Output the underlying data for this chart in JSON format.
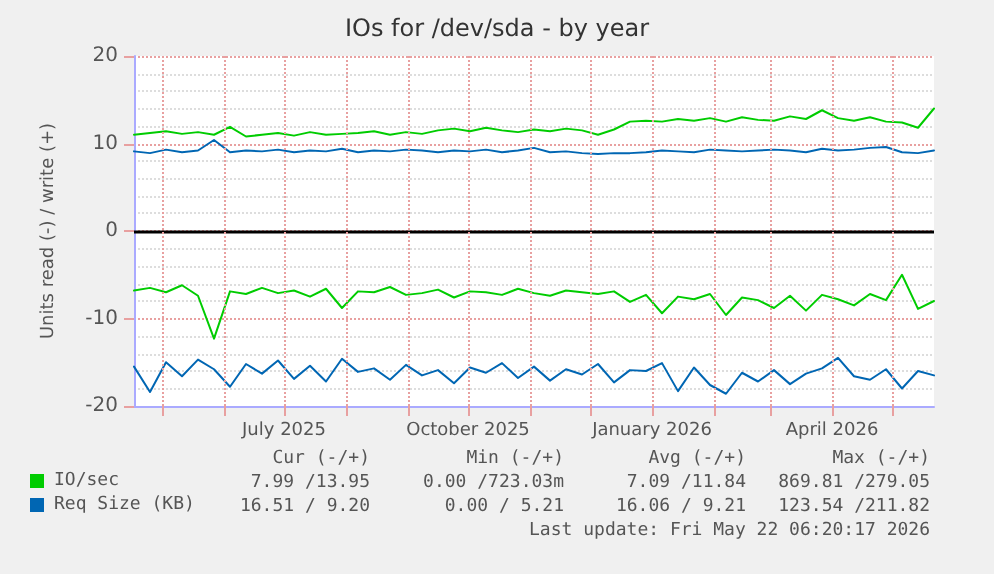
{
  "chart_data": {
    "type": "line",
    "title": "IOs for /dev/sda - by year",
    "ylabel": "Units read (-) / write (+)",
    "x": [
      "2025-04-17",
      "2025-04-25",
      "2025-05-03",
      "2025-05-11",
      "2025-05-19",
      "2025-05-27",
      "2025-06-04",
      "2025-06-12",
      "2025-06-20",
      "2025-06-28",
      "2025-07-06",
      "2025-07-14",
      "2025-07-22",
      "2025-07-30",
      "2025-08-07",
      "2025-08-15",
      "2025-08-23",
      "2025-08-31",
      "2025-09-08",
      "2025-09-16",
      "2025-09-24",
      "2025-10-02",
      "2025-10-10",
      "2025-10-18",
      "2025-10-26",
      "2025-11-03",
      "2025-11-11",
      "2025-11-19",
      "2025-11-27",
      "2025-12-05",
      "2025-12-13",
      "2025-12-21",
      "2025-12-29",
      "2026-01-06",
      "2026-01-14",
      "2026-01-22",
      "2026-01-30",
      "2026-02-07",
      "2026-02-15",
      "2026-02-23",
      "2026-03-03",
      "2026-03-11",
      "2026-03-19",
      "2026-03-27",
      "2026-04-04",
      "2026-04-12",
      "2026-04-20",
      "2026-04-28",
      "2026-05-06",
      "2026-05-14",
      "2026-05-22"
    ],
    "series": [
      {
        "name": "IO/sec",
        "color": "#00cc00",
        "values": [
          11.0,
          11.2,
          11.4,
          11.1,
          11.3,
          11.0,
          11.9,
          10.8,
          11.0,
          11.2,
          10.9,
          11.3,
          11.0,
          11.1,
          11.2,
          11.4,
          11.0,
          11.3,
          11.1,
          11.5,
          11.7,
          11.4,
          11.8,
          11.5,
          11.3,
          11.6,
          11.4,
          11.7,
          11.5,
          11.0,
          11.6,
          12.5,
          12.6,
          12.5,
          12.8,
          12.6,
          12.9,
          12.5,
          13.0,
          12.7,
          12.6,
          13.1,
          12.8,
          13.8,
          12.9,
          12.6,
          13.0,
          12.5,
          12.4,
          11.8,
          14.0
        ]
      },
      {
        "color": "#00cc00",
        "values": [
          -6.8,
          -6.5,
          -7.0,
          -6.2,
          -7.4,
          -12.3,
          -6.9,
          -7.2,
          -6.5,
          -7.1,
          -6.8,
          -7.5,
          -6.6,
          -8.8,
          -6.9,
          -7.0,
          -6.4,
          -7.3,
          -7.1,
          -6.7,
          -7.6,
          -6.9,
          -7.0,
          -7.3,
          -6.6,
          -7.1,
          -7.4,
          -6.8,
          -7.0,
          -7.2,
          -6.9,
          -8.1,
          -7.3,
          -9.4,
          -7.5,
          -7.8,
          -7.2,
          -9.6,
          -7.6,
          -7.9,
          -8.8,
          -7.4,
          -9.1,
          -7.3,
          -7.8,
          -8.5,
          -7.2,
          -7.9,
          -5.0,
          -8.9,
          -8.0
        ]
      },
      {
        "name": "Req Size (KB)",
        "color": "#0066b3",
        "values": [
          9.1,
          8.9,
          9.3,
          9.0,
          9.2,
          10.4,
          9.0,
          9.2,
          9.1,
          9.3,
          9.0,
          9.2,
          9.1,
          9.4,
          9.0,
          9.2,
          9.1,
          9.3,
          9.2,
          9.0,
          9.2,
          9.1,
          9.3,
          9.0,
          9.2,
          9.5,
          9.0,
          9.1,
          8.9,
          8.8,
          8.9,
          8.9,
          9.0,
          9.2,
          9.1,
          9.0,
          9.3,
          9.2,
          9.1,
          9.2,
          9.3,
          9.2,
          9.0,
          9.4,
          9.2,
          9.3,
          9.5,
          9.6,
          9.0,
          8.9,
          9.2
        ]
      },
      {
        "color": "#0066b3",
        "values": [
          -15.5,
          -18.4,
          -15.0,
          -16.6,
          -14.7,
          -15.8,
          -17.8,
          -15.2,
          -16.3,
          -14.8,
          -16.9,
          -15.4,
          -17.2,
          -14.6,
          -16.1,
          -15.7,
          -17.0,
          -15.3,
          -16.5,
          -15.9,
          -17.4,
          -15.6,
          -16.2,
          -15.1,
          -16.8,
          -15.5,
          -17.1,
          -15.8,
          -16.4,
          -15.2,
          -17.3,
          -15.9,
          -16.0,
          -15.1,
          -18.3,
          -15.6,
          -17.6,
          -18.6,
          -16.2,
          -17.2,
          -15.9,
          -17.5,
          -16.3,
          -15.7,
          -14.5,
          -16.6,
          -17.0,
          -15.8,
          -18.0,
          -16.0,
          -16.5
        ]
      }
    ],
    "xlim": [
      "2025-04-17",
      "2026-05-22"
    ],
    "xticks": [
      {
        "value": "2025-05-01",
        "label": null
      },
      {
        "value": "2025-06-01",
        "label": null
      },
      {
        "value": "2025-07-01",
        "label": "July 2025"
      },
      {
        "value": "2025-08-01",
        "label": null
      },
      {
        "value": "2025-09-01",
        "label": null
      },
      {
        "value": "2025-10-01",
        "label": "October 2025"
      },
      {
        "value": "2025-11-01",
        "label": null
      },
      {
        "value": "2025-12-01",
        "label": null
      },
      {
        "value": "2026-01-01",
        "label": "January 2026"
      },
      {
        "value": "2026-02-01",
        "label": null
      },
      {
        "value": "2026-03-01",
        "label": null
      },
      {
        "value": "2026-04-01",
        "label": "April 2026"
      },
      {
        "value": "2026-05-01",
        "label": null
      }
    ],
    "ylim": [
      -20,
      20
    ],
    "yticks": [
      -20,
      -10,
      0,
      10,
      20
    ],
    "ref_lines": [
      {
        "axis": "y",
        "value": 0,
        "color": "#000000"
      }
    ],
    "grid": true,
    "legend": "bottom left",
    "marker": "none",
    "line_style": "solid",
    "annotations": [
      "Cur (-/+)",
      "Min (-/+)",
      "Avg (-/+)",
      "Max (-/+)",
      "7.99 /13.95",
      "0.00 /723.03m",
      "7.09 /11.84",
      "869.81 /279.05",
      "16.51 / 9.20",
      "0.00 / 5.21",
      "16.06 / 9.21",
      "123.54 /211.82",
      "Last update: Fri May 22 06:20:17 2026"
    ]
  }
}
